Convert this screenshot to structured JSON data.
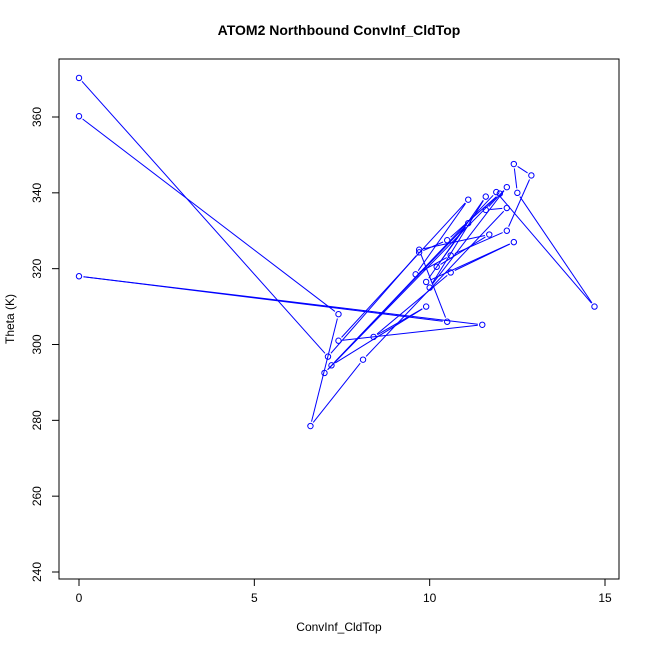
{
  "chart_data": {
    "type": "line",
    "title": "ATOM2 Northbound ConvInf_CldTop",
    "xlabel": "ConvInf_CldTop",
    "ylabel": "Theta (K)",
    "xlim": [
      0,
      15
    ],
    "ylim": [
      240,
      370
    ],
    "xticks": [
      0,
      5,
      10,
      15
    ],
    "yticks": [
      240,
      260,
      280,
      300,
      320,
      340,
      360
    ],
    "xtick_labels": [
      "0",
      "5",
      "10",
      "15"
    ],
    "ytick_labels": [
      "240",
      "260",
      "280",
      "300",
      "320",
      "340",
      "360"
    ],
    "grid": false,
    "legend": "none",
    "colors": {
      "series": "#0000ff",
      "axes": "#000000"
    },
    "series": [
      {
        "marker": "open-circle",
        "points": [
          {
            "x": 0.0,
            "y": 370.3
          },
          {
            "x": 7.1,
            "y": 296.8
          },
          {
            "x": 9.7,
            "y": 324.3
          },
          {
            "x": 10.5,
            "y": 327.5
          },
          {
            "x": 12.0,
            "y": 339.8
          },
          {
            "x": 7.0,
            "y": 292.5
          },
          {
            "x": 11.9,
            "y": 340.2
          },
          {
            "x": 14.7,
            "y": 310.0
          },
          {
            "x": 12.5,
            "y": 340.0
          },
          {
            "x": 12.4,
            "y": 347.6
          },
          {
            "x": 12.9,
            "y": 344.6
          },
          {
            "x": 12.2,
            "y": 330.0
          },
          {
            "x": 10.6,
            "y": 323.5
          },
          {
            "x": 9.6,
            "y": 318.5
          },
          {
            "x": 11.1,
            "y": 338.2
          },
          {
            "x": 7.4,
            "y": 301.0
          },
          {
            "x": 11.5,
            "y": 305.2
          },
          {
            "x": 0.0,
            "y": 318.0
          },
          {
            "x": 10.5,
            "y": 306.0
          },
          {
            "x": 9.7,
            "y": 325.0
          },
          {
            "x": 11.7,
            "y": 329.0
          },
          {
            "x": 10.2,
            "y": 320.5
          },
          {
            "x": 11.1,
            "y": 332.0
          },
          {
            "x": 7.2,
            "y": 294.5
          },
          {
            "x": 9.9,
            "y": 310.0
          },
          {
            "x": 8.4,
            "y": 302.0
          },
          {
            "x": 10.6,
            "y": 319.0
          },
          {
            "x": 12.4,
            "y": 327.0
          },
          {
            "x": 9.9,
            "y": 316.5
          },
          {
            "x": 11.6,
            "y": 339.0
          },
          {
            "x": 10.0,
            "y": 315.0
          },
          {
            "x": 12.2,
            "y": 341.5
          },
          {
            "x": 11.6,
            "y": 335.5
          },
          {
            "x": 12.2,
            "y": 336.0
          },
          {
            "x": 8.1,
            "y": 296.0
          },
          {
            "x": 6.6,
            "y": 278.5
          },
          {
            "x": 7.4,
            "y": 308.0
          },
          {
            "x": 0.0,
            "y": 360.2
          }
        ]
      }
    ]
  }
}
